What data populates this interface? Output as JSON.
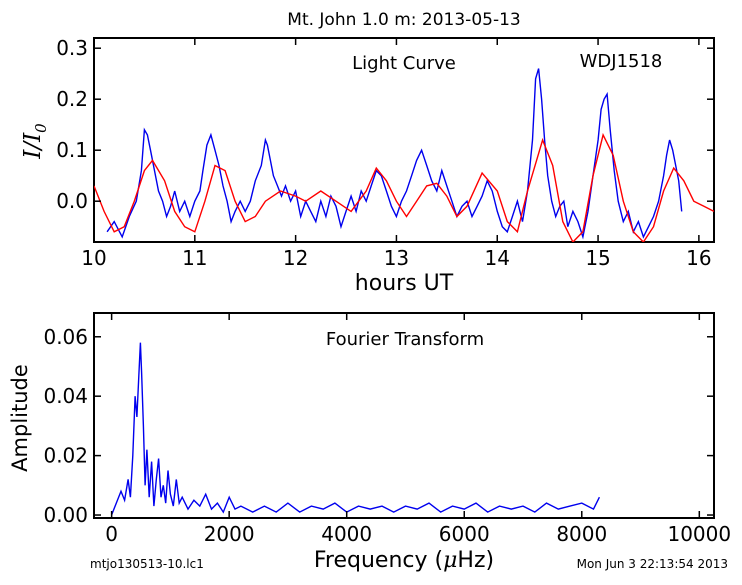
{
  "title": "Mt. John 1.0 m:  2013-05-13",
  "footer": {
    "left": "mtjo130513-10.lc1",
    "right": "Mon Jun  3 22:13:54 2013"
  },
  "colors": {
    "data": "#0000ee",
    "model": "#ff0000",
    "axes": "#000000"
  },
  "chart_data": [
    {
      "type": "line",
      "annotations": [
        "Light Curve",
        "WDJ1518"
      ],
      "xlabel": "hours UT",
      "ylabel_main": "I/I",
      "ylabel_sub": "0",
      "xlim": [
        10.0,
        16.15
      ],
      "ylim": [
        -0.08,
        0.32
      ],
      "xticks": [
        10,
        11,
        12,
        13,
        14,
        15,
        16
      ],
      "yticks": [
        "0.0",
        "0.1",
        "0.2",
        "0.3"
      ],
      "ytick_values": [
        0.0,
        0.1,
        0.2,
        0.3
      ],
      "series": [
        {
          "x": [
            10.13,
            10.2,
            10.28,
            10.35,
            10.42,
            10.47,
            10.5,
            10.53,
            10.56,
            10.6,
            10.64,
            10.68,
            10.72,
            10.76,
            10.8,
            10.85,
            10.9,
            10.95,
            11.0,
            11.05,
            11.08,
            11.12,
            11.16,
            11.2,
            11.24,
            11.28,
            11.32,
            11.36,
            11.4,
            11.45,
            11.5,
            11.55,
            11.6,
            11.66,
            11.7,
            11.72,
            11.75,
            11.78,
            11.82,
            11.86,
            11.9,
            11.95,
            12.0,
            12.05,
            12.1,
            12.15,
            12.2,
            12.25,
            12.3,
            12.35,
            12.4,
            12.45,
            12.5,
            12.55,
            12.6,
            12.65,
            12.7,
            12.75,
            12.8,
            12.85,
            12.9,
            12.95,
            13.0,
            13.05,
            13.1,
            13.15,
            13.2,
            13.25,
            13.3,
            13.35,
            13.4,
            13.45,
            13.5,
            13.55,
            13.6,
            13.65,
            13.7,
            13.75,
            13.8,
            13.85,
            13.9,
            13.95,
            14.0,
            14.05,
            14.1,
            14.15,
            14.2,
            14.25,
            14.3,
            14.35,
            14.38,
            14.41,
            14.44,
            14.47,
            14.5,
            14.54,
            14.58,
            14.62,
            14.66,
            14.7,
            14.75,
            14.8,
            14.85,
            14.9,
            14.95,
            15.0,
            15.03,
            15.06,
            15.09,
            15.12,
            15.16,
            15.2,
            15.25,
            15.3,
            15.35,
            15.4,
            15.45,
            15.5,
            15.55,
            15.6,
            15.65,
            15.68,
            15.71,
            15.74,
            15.77,
            15.8,
            15.83
          ],
          "y": [
            -0.06,
            -0.04,
            -0.07,
            -0.03,
            0.0,
            0.06,
            0.14,
            0.13,
            0.1,
            0.06,
            0.02,
            0.0,
            -0.03,
            -0.01,
            0.02,
            -0.02,
            0.0,
            -0.03,
            0.0,
            0.02,
            0.06,
            0.11,
            0.13,
            0.1,
            0.07,
            0.03,
            0.0,
            -0.04,
            -0.02,
            0.0,
            -0.02,
            0.0,
            0.04,
            0.07,
            0.12,
            0.11,
            0.08,
            0.05,
            0.03,
            0.01,
            0.03,
            0.0,
            0.02,
            -0.03,
            0.0,
            -0.02,
            -0.04,
            0.0,
            -0.03,
            0.01,
            -0.01,
            -0.05,
            -0.02,
            0.01,
            -0.02,
            0.02,
            0.0,
            0.03,
            0.06,
            0.05,
            0.02,
            -0.01,
            -0.03,
            0.0,
            0.02,
            0.05,
            0.08,
            0.1,
            0.07,
            0.04,
            0.02,
            0.06,
            0.03,
            0.0,
            -0.03,
            -0.01,
            0.0,
            -0.03,
            -0.01,
            0.01,
            0.04,
            0.02,
            -0.02,
            -0.05,
            -0.06,
            -0.03,
            0.0,
            -0.04,
            0.02,
            0.12,
            0.24,
            0.26,
            0.2,
            0.12,
            0.05,
            0.0,
            -0.03,
            -0.01,
            0.0,
            -0.05,
            -0.02,
            -0.04,
            -0.07,
            -0.02,
            0.05,
            0.12,
            0.18,
            0.2,
            0.21,
            0.14,
            0.06,
            0.0,
            -0.04,
            -0.02,
            -0.06,
            -0.04,
            -0.07,
            -0.05,
            -0.03,
            0.0,
            0.05,
            0.09,
            0.12,
            0.1,
            0.07,
            0.04,
            -0.02
          ]
        },
        {
          "x": [
            10.0,
            10.1,
            10.2,
            10.3,
            10.4,
            10.5,
            10.58,
            10.7,
            10.8,
            10.9,
            11.0,
            11.1,
            11.2,
            11.3,
            11.4,
            11.5,
            11.6,
            11.7,
            11.85,
            12.0,
            12.1,
            12.25,
            12.4,
            12.55,
            12.7,
            12.8,
            12.9,
            13.0,
            13.1,
            13.2,
            13.3,
            13.4,
            13.5,
            13.6,
            13.7,
            13.85,
            14.0,
            14.1,
            14.2,
            14.3,
            14.45,
            14.55,
            14.65,
            14.75,
            14.85,
            14.95,
            15.05,
            15.15,
            15.25,
            15.35,
            15.45,
            15.55,
            15.65,
            15.75,
            15.85,
            15.95,
            16.05,
            16.15
          ],
          "y": [
            0.03,
            -0.02,
            -0.06,
            -0.05,
            0.0,
            0.06,
            0.08,
            0.04,
            -0.02,
            -0.05,
            -0.06,
            0.0,
            0.07,
            0.06,
            0.0,
            -0.04,
            -0.03,
            0.0,
            0.02,
            0.01,
            0.0,
            0.02,
            0.0,
            -0.02,
            0.02,
            0.065,
            0.04,
            0.0,
            -0.03,
            0.0,
            0.03,
            0.035,
            0.01,
            -0.03,
            -0.01,
            0.055,
            0.02,
            -0.04,
            -0.06,
            0.02,
            0.12,
            0.07,
            -0.04,
            -0.08,
            -0.06,
            0.05,
            0.13,
            0.09,
            0.0,
            -0.06,
            -0.08,
            -0.05,
            0.02,
            0.065,
            0.04,
            0.0,
            -0.01,
            -0.02
          ]
        }
      ]
    },
    {
      "type": "line",
      "annotations": [
        "Fourier Transform"
      ],
      "xlabel": "Frequency (",
      "xlabel_mu": "μ",
      "xlabel_end": "Hz)",
      "ylabel": "Amplitude",
      "xlim": [
        -300,
        10250
      ],
      "ylim": [
        -0.001,
        0.068
      ],
      "xticks": [
        0,
        2000,
        4000,
        6000,
        8000,
        10000
      ],
      "yticks": [
        "0.00",
        "0.02",
        "0.04",
        "0.06"
      ],
      "ytick_values": [
        0.0,
        0.02,
        0.04,
        0.06
      ],
      "series": [
        {
          "x": [
            0,
            80,
            160,
            220,
            280,
            320,
            360,
            400,
            430,
            460,
            490,
            510,
            540,
            570,
            600,
            640,
            680,
            720,
            760,
            800,
            840,
            880,
            920,
            960,
            1000,
            1050,
            1100,
            1150,
            1200,
            1300,
            1400,
            1500,
            1600,
            1700,
            1800,
            1900,
            2000,
            2100,
            2200,
            2400,
            2600,
            2800,
            3000,
            3200,
            3400,
            3600,
            3800,
            4000,
            4200,
            4400,
            4600,
            4800,
            5000,
            5200,
            5400,
            5600,
            5800,
            6000,
            6200,
            6400,
            6600,
            6800,
            7000,
            7200,
            7400,
            7600,
            7800,
            8000,
            8200,
            8300
          ],
          "y": [
            0.0,
            0.004,
            0.008,
            0.005,
            0.012,
            0.006,
            0.02,
            0.04,
            0.033,
            0.046,
            0.058,
            0.048,
            0.03,
            0.01,
            0.022,
            0.006,
            0.018,
            0.003,
            0.012,
            0.019,
            0.006,
            0.01,
            0.004,
            0.015,
            0.007,
            0.003,
            0.012,
            0.004,
            0.006,
            0.002,
            0.005,
            0.003,
            0.007,
            0.002,
            0.004,
            0.001,
            0.006,
            0.002,
            0.003,
            0.001,
            0.003,
            0.001,
            0.004,
            0.001,
            0.003,
            0.002,
            0.004,
            0.001,
            0.003,
            0.002,
            0.003,
            0.001,
            0.003,
            0.002,
            0.004,
            0.001,
            0.003,
            0.002,
            0.004,
            0.001,
            0.003,
            0.002,
            0.003,
            0.001,
            0.004,
            0.002,
            0.003,
            0.004,
            0.002,
            0.006
          ]
        }
      ]
    }
  ]
}
